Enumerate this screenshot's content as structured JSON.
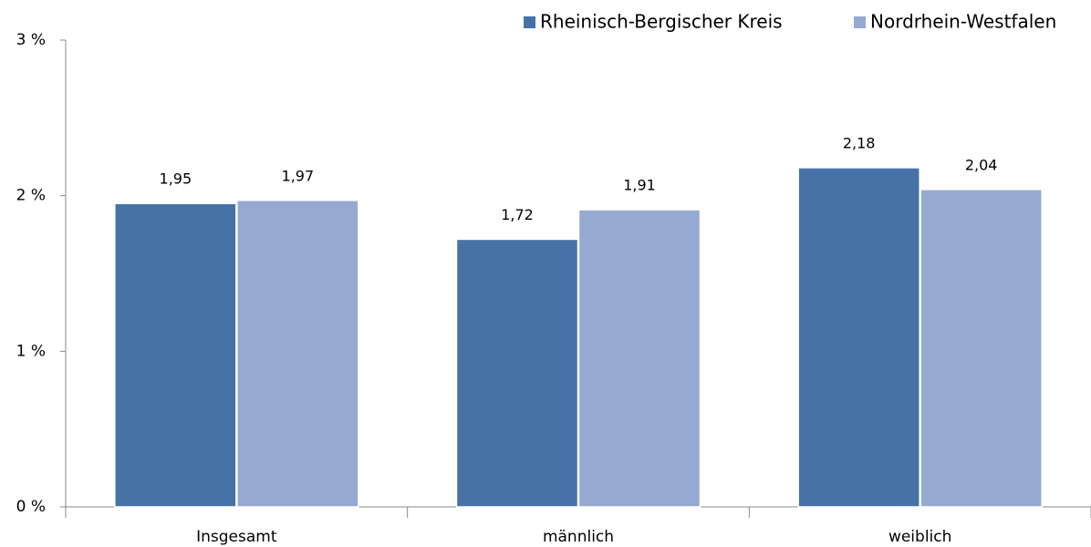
{
  "chart_data": {
    "type": "bar",
    "categories": [
      "Insgesamt",
      "männlich",
      "weiblich"
    ],
    "series": [
      {
        "name": "Rheinisch-Bergischer Kreis",
        "color": "#4672a8",
        "values": [
          1.95,
          1.72,
          2.18
        ],
        "value_labels": [
          "1,95",
          "1,72",
          "2,18"
        ]
      },
      {
        "name": "Nordrhein-Westfalen",
        "color": "#95a9d1",
        "values": [
          1.97,
          1.91,
          2.04
        ],
        "value_labels": [
          "1,97",
          "1,91",
          "2,04"
        ]
      }
    ],
    "ylim": [
      0,
      3
    ],
    "yticks": [
      {
        "value": 0,
        "label": "0 %"
      },
      {
        "value": 1,
        "label": "1 %"
      },
      {
        "value": 2,
        "label": "2 %"
      },
      {
        "value": 3,
        "label": "3 %"
      }
    ],
    "grid": false,
    "legend": "top-right"
  }
}
